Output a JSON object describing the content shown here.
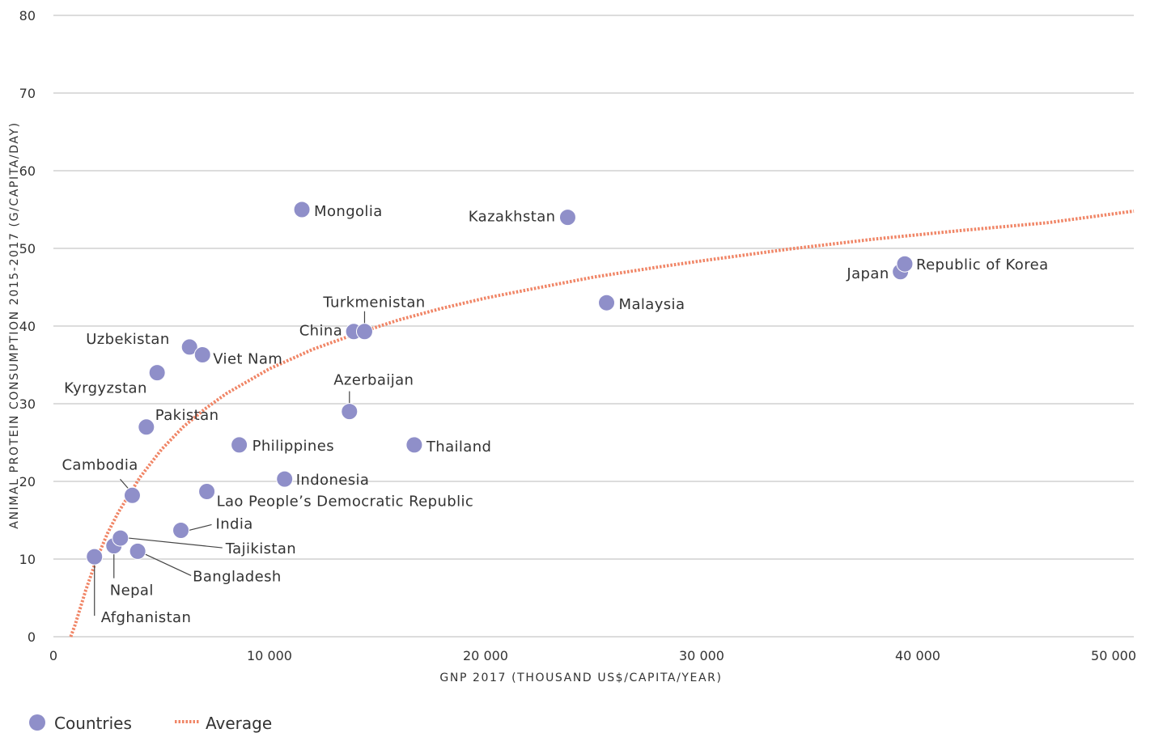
{
  "chart_data": {
    "type": "scatter",
    "xlabel": "GNP 2017 (THOUSAND US$/CAPITA/YEAR)",
    "ylabel": "ANIMAL PROTEIN CONSUMPTION 2015-2017 (G/CAPITA/DAY)",
    "xlim": [
      0,
      50000
    ],
    "ylim": [
      0,
      80
    ],
    "x_ticks": [
      0,
      10000,
      20000,
      30000,
      40000,
      50000
    ],
    "x_tick_labels": [
      "0",
      "10 000",
      "20 000",
      "30 000",
      "40 000",
      "50 000"
    ],
    "y_ticks": [
      0,
      10,
      20,
      30,
      40,
      50,
      60,
      70,
      80
    ],
    "y_tick_labels": [
      "0",
      "10",
      "20",
      "30",
      "40",
      "50",
      "60",
      "70",
      "80"
    ],
    "grid": "horizontal",
    "legend_position": "bottom-left",
    "colors": {
      "points": "#8f8fc9",
      "trend": "#f08566",
      "grid": "#c8c8c8"
    },
    "series": [
      {
        "name": "Countries",
        "points": [
          {
            "label": "Afghanistan",
            "x": 1900,
            "y": 10.3
          },
          {
            "label": "Nepal",
            "x": 2800,
            "y": 11.7
          },
          {
            "label": "Tajikistan",
            "x": 3100,
            "y": 12.7
          },
          {
            "label": "Bangladesh",
            "x": 3900,
            "y": 11.0
          },
          {
            "label": "Cambodia",
            "x": 3650,
            "y": 18.2
          },
          {
            "label": "Pakistan",
            "x": 4300,
            "y": 27.0
          },
          {
            "label": "Kyrgyzstan",
            "x": 4800,
            "y": 34.0
          },
          {
            "label": "Uzbekistan",
            "x": 6300,
            "y": 37.3
          },
          {
            "label": "Viet Nam",
            "x": 6900,
            "y": 36.3
          },
          {
            "label": "India",
            "x": 5900,
            "y": 13.7
          },
          {
            "label": "Lao People’s Democratic Republic",
            "x": 7100,
            "y": 18.7
          },
          {
            "label": "Philippines",
            "x": 8600,
            "y": 24.7
          },
          {
            "label": "Indonesia",
            "x": 10700,
            "y": 20.3
          },
          {
            "label": "Mongolia",
            "x": 11500,
            "y": 55.0
          },
          {
            "label": "China",
            "x": 13900,
            "y": 39.3
          },
          {
            "label": "Turkmenistan",
            "x": 14400,
            "y": 39.3
          },
          {
            "label": "Azerbaijan",
            "x": 13700,
            "y": 29.0
          },
          {
            "label": "Thailand",
            "x": 16700,
            "y": 24.7
          },
          {
            "label": "Kazakhstan",
            "x": 23800,
            "y": 54.0
          },
          {
            "label": "Malaysia",
            "x": 25600,
            "y": 43.0
          },
          {
            "label": "Japan",
            "x": 39200,
            "y": 47.0
          },
          {
            "label": "Republic of Korea",
            "x": 39400,
            "y": 48.0
          }
        ]
      },
      {
        "name": "Average",
        "type": "line",
        "style": "dotted",
        "x": [
          800,
          1000,
          1500,
          2000,
          2500,
          3000,
          4000,
          5000,
          6000,
          7000,
          8000,
          10000,
          12000,
          14000,
          16000,
          18000,
          20000,
          22000,
          25000,
          28000,
          30000,
          34000,
          38000,
          42000,
          46000,
          50000
        ],
        "y": [
          0,
          1.5,
          6,
          10,
          13.3,
          16,
          20.5,
          24.1,
          27,
          29.3,
          31.3,
          34.5,
          37.0,
          39.0,
          40.8,
          42.3,
          43.6,
          44.7,
          46.3,
          47.6,
          48.4,
          49.9,
          51.2,
          52.3,
          53.3,
          54.8
        ]
      }
    ]
  }
}
